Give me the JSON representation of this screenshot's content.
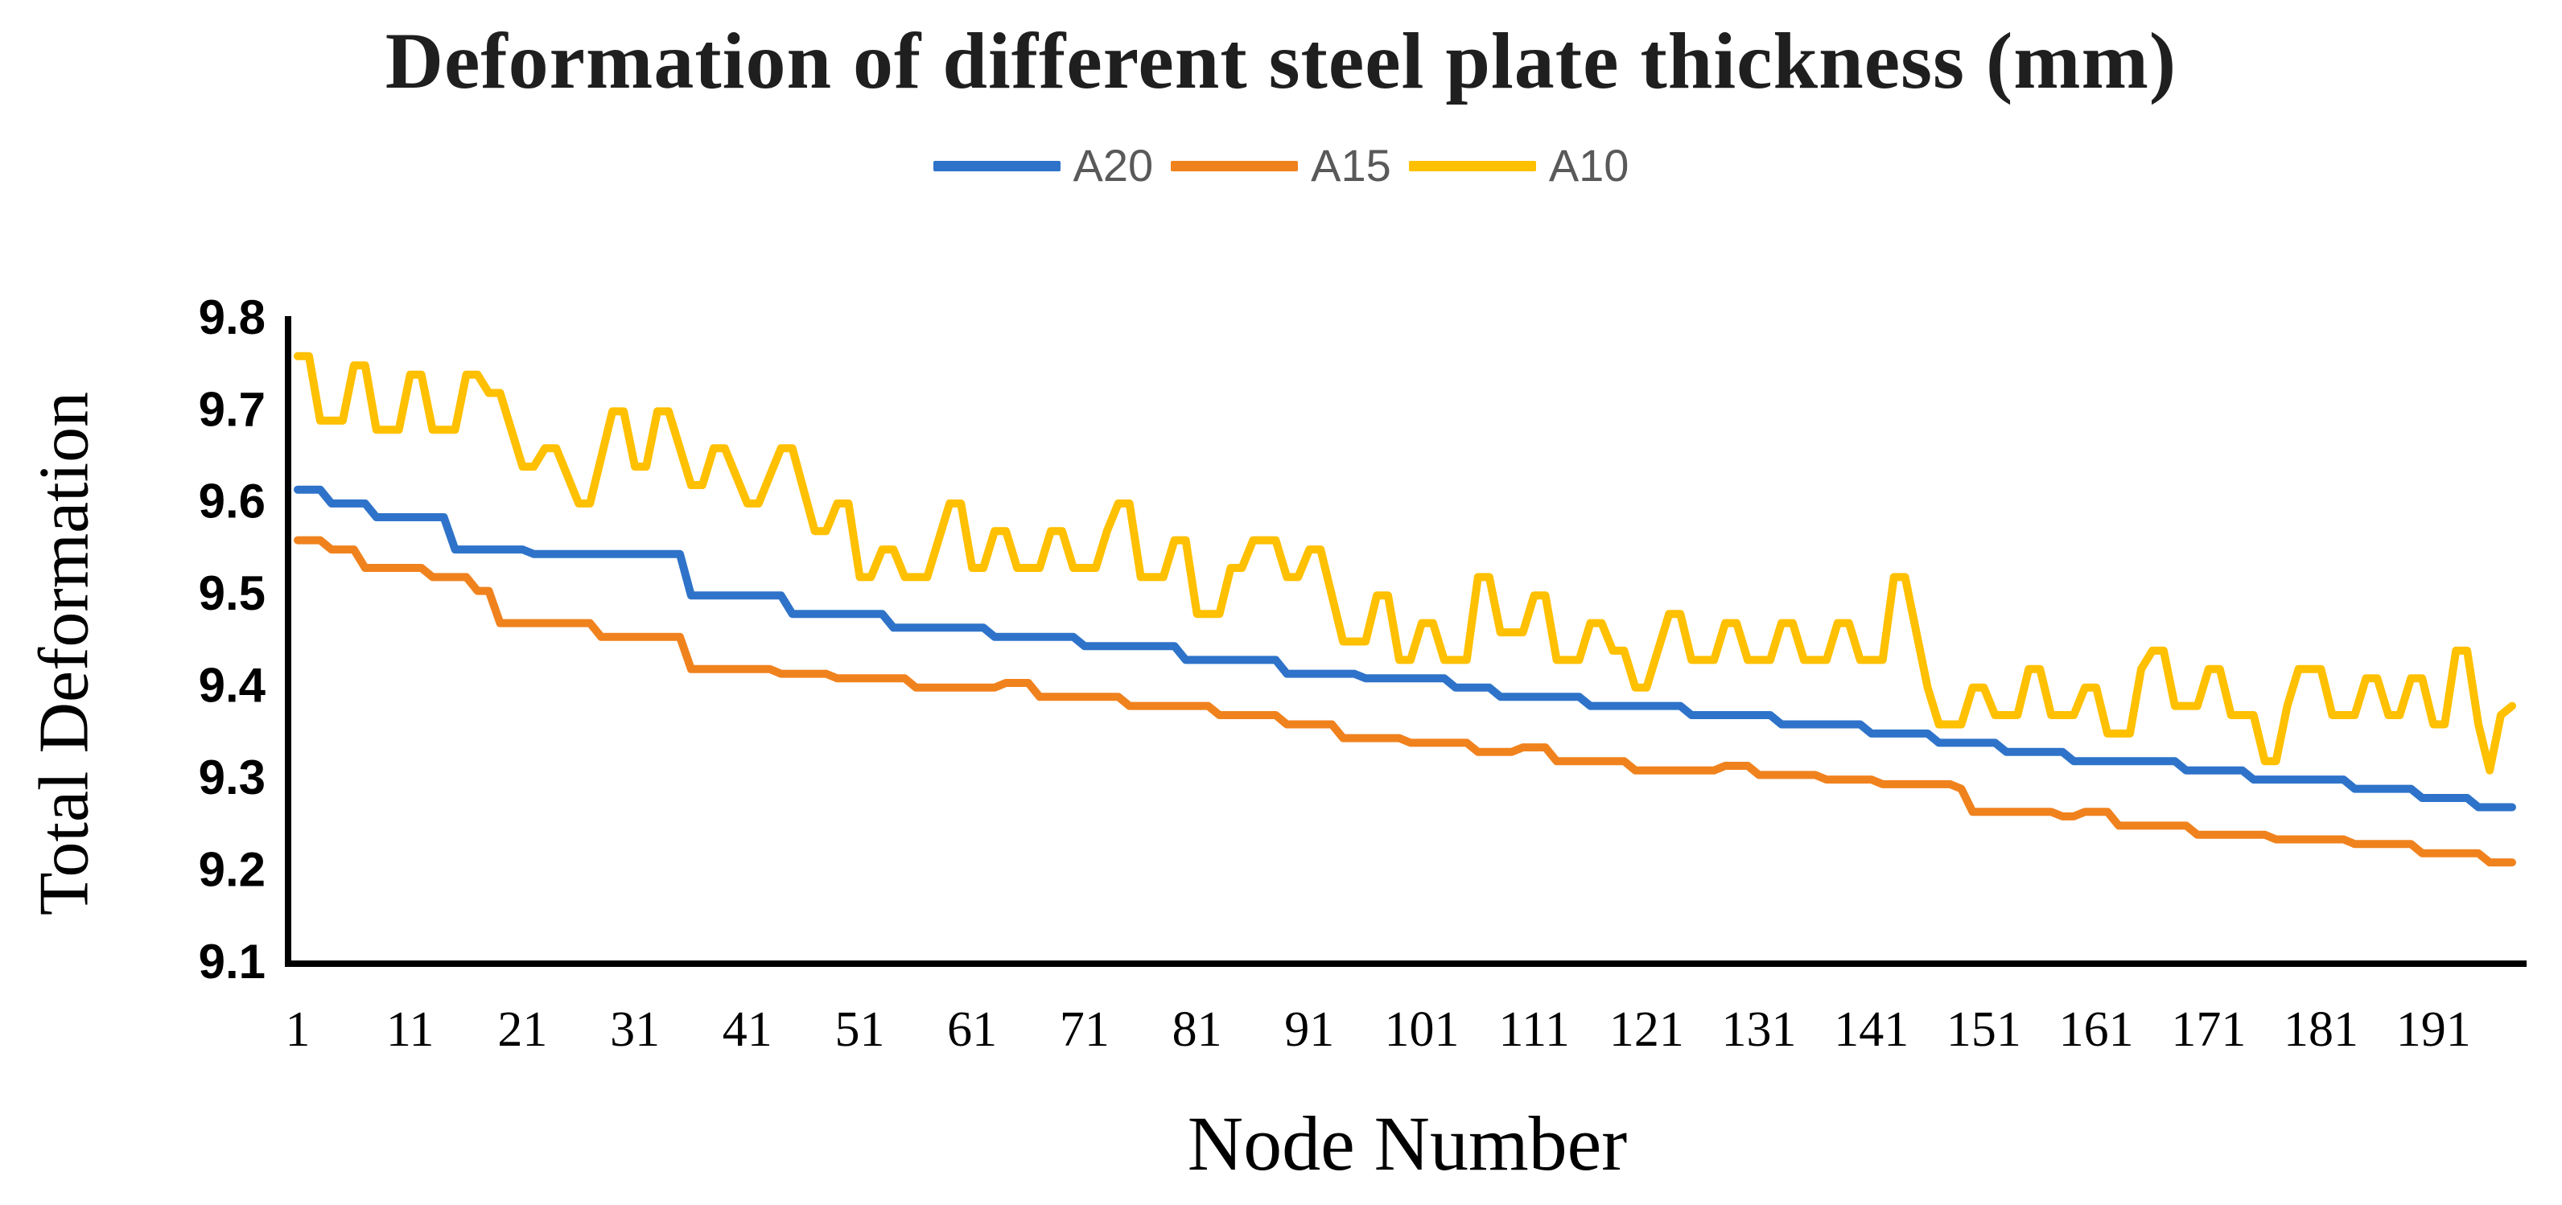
{
  "chart_data": {
    "type": "line",
    "title": "Deformation of different steel plate thickness (mm)",
    "xlabel": "Node Number",
    "ylabel": "Total Deformation",
    "xlim": [
      1,
      198
    ],
    "ylim": [
      9.1,
      9.8
    ],
    "grid": false,
    "legend_position": "top",
    "axis_color": "#000000",
    "yticks": [
      "9.8",
      "9.7",
      "9.6",
      "9.5",
      "9.4",
      "9.3",
      "9.2",
      "9.1"
    ],
    "ytick_values": [
      9.8,
      9.7,
      9.6,
      9.5,
      9.4,
      9.3,
      9.2,
      9.1
    ],
    "xticks": [
      1,
      11,
      21,
      31,
      41,
      51,
      61,
      71,
      81,
      91,
      101,
      111,
      121,
      131,
      141,
      151,
      161,
      171,
      181,
      191
    ],
    "series": [
      {
        "name": "A20",
        "color": "#2E73C9",
        "points": [
          [
            1,
            9.615
          ],
          [
            3,
            9.615
          ],
          [
            4,
            9.6
          ],
          [
            7,
            9.6
          ],
          [
            8,
            9.585
          ],
          [
            14,
            9.585
          ],
          [
            15,
            9.55
          ],
          [
            21,
            9.55
          ],
          [
            22,
            9.545
          ],
          [
            35,
            9.545
          ],
          [
            36,
            9.5
          ],
          [
            44,
            9.5
          ],
          [
            45,
            9.48
          ],
          [
            53,
            9.48
          ],
          [
            54,
            9.465
          ],
          [
            62,
            9.465
          ],
          [
            63,
            9.455
          ],
          [
            70,
            9.455
          ],
          [
            71,
            9.445
          ],
          [
            79,
            9.445
          ],
          [
            80,
            9.43
          ],
          [
            88,
            9.43
          ],
          [
            89,
            9.415
          ],
          [
            95,
            9.415
          ],
          [
            96,
            9.41
          ],
          [
            103,
            9.41
          ],
          [
            104,
            9.4
          ],
          [
            107,
            9.4
          ],
          [
            108,
            9.39
          ],
          [
            115,
            9.39
          ],
          [
            116,
            9.38
          ],
          [
            124,
            9.38
          ],
          [
            125,
            9.37
          ],
          [
            132,
            9.37
          ],
          [
            133,
            9.36
          ],
          [
            140,
            9.36
          ],
          [
            141,
            9.35
          ],
          [
            146,
            9.35
          ],
          [
            147,
            9.34
          ],
          [
            152,
            9.34
          ],
          [
            153,
            9.33
          ],
          [
            158,
            9.33
          ],
          [
            159,
            9.32
          ],
          [
            168,
            9.32
          ],
          [
            169,
            9.31
          ],
          [
            174,
            9.31
          ],
          [
            175,
            9.3
          ],
          [
            183,
            9.3
          ],
          [
            184,
            9.29
          ],
          [
            189,
            9.29
          ],
          [
            190,
            9.28
          ],
          [
            194,
            9.28
          ],
          [
            195,
            9.27
          ],
          [
            198,
            9.27
          ]
        ]
      },
      {
        "name": "A15",
        "color": "#F0821E",
        "points": [
          [
            1,
            9.56
          ],
          [
            3,
            9.56
          ],
          [
            4,
            9.55
          ],
          [
            6,
            9.55
          ],
          [
            7,
            9.53
          ],
          [
            12,
            9.53
          ],
          [
            13,
            9.52
          ],
          [
            16,
            9.52
          ],
          [
            17,
            9.505
          ],
          [
            18,
            9.505
          ],
          [
            19,
            9.47
          ],
          [
            27,
            9.47
          ],
          [
            28,
            9.455
          ],
          [
            35,
            9.455
          ],
          [
            36,
            9.42
          ],
          [
            43,
            9.42
          ],
          [
            44,
            9.415
          ],
          [
            48,
            9.415
          ],
          [
            49,
            9.41
          ],
          [
            55,
            9.41
          ],
          [
            56,
            9.4
          ],
          [
            63,
            9.4
          ],
          [
            64,
            9.405
          ],
          [
            66,
            9.405
          ],
          [
            67,
            9.39
          ],
          [
            74,
            9.39
          ],
          [
            75,
            9.38
          ],
          [
            82,
            9.38
          ],
          [
            83,
            9.37
          ],
          [
            88,
            9.37
          ],
          [
            89,
            9.36
          ],
          [
            93,
            9.36
          ],
          [
            94,
            9.345
          ],
          [
            99,
            9.345
          ],
          [
            100,
            9.34
          ],
          [
            105,
            9.34
          ],
          [
            106,
            9.33
          ],
          [
            109,
            9.33
          ],
          [
            110,
            9.335
          ],
          [
            112,
            9.335
          ],
          [
            113,
            9.32
          ],
          [
            119,
            9.32
          ],
          [
            120,
            9.31
          ],
          [
            127,
            9.31
          ],
          [
            128,
            9.315
          ],
          [
            130,
            9.315
          ],
          [
            131,
            9.305
          ],
          [
            136,
            9.305
          ],
          [
            137,
            9.3
          ],
          [
            141,
            9.3
          ],
          [
            142,
            9.295
          ],
          [
            148,
            9.295
          ],
          [
            149,
            9.29
          ],
          [
            150,
            9.265
          ],
          [
            157,
            9.265
          ],
          [
            158,
            9.26
          ],
          [
            159,
            9.26
          ],
          [
            160,
            9.265
          ],
          [
            162,
            9.265
          ],
          [
            163,
            9.25
          ],
          [
            169,
            9.25
          ],
          [
            170,
            9.24
          ],
          [
            176,
            9.24
          ],
          [
            177,
            9.235
          ],
          [
            183,
            9.235
          ],
          [
            184,
            9.23
          ],
          [
            189,
            9.23
          ],
          [
            190,
            9.22
          ],
          [
            195,
            9.22
          ],
          [
            196,
            9.21
          ],
          [
            198,
            9.21
          ]
        ]
      },
      {
        "name": "A10",
        "color": "#FFC000",
        "points": [
          [
            1,
            9.76
          ],
          [
            2,
            9.76
          ],
          [
            3,
            9.69
          ],
          [
            5,
            9.69
          ],
          [
            6,
            9.75
          ],
          [
            7,
            9.75
          ],
          [
            8,
            9.68
          ],
          [
            10,
            9.68
          ],
          [
            11,
            9.74
          ],
          [
            12,
            9.74
          ],
          [
            13,
            9.68
          ],
          [
            15,
            9.68
          ],
          [
            16,
            9.74
          ],
          [
            17,
            9.74
          ],
          [
            18,
            9.72
          ],
          [
            19,
            9.72
          ],
          [
            21,
            9.64
          ],
          [
            22,
            9.64
          ],
          [
            23,
            9.66
          ],
          [
            24,
            9.66
          ],
          [
            26,
            9.6
          ],
          [
            27,
            9.6
          ],
          [
            28,
            9.65
          ],
          [
            29,
            9.7
          ],
          [
            30,
            9.7
          ],
          [
            31,
            9.64
          ],
          [
            32,
            9.64
          ],
          [
            33,
            9.7
          ],
          [
            34,
            9.7
          ],
          [
            36,
            9.62
          ],
          [
            37,
            9.62
          ],
          [
            38,
            9.66
          ],
          [
            39,
            9.66
          ],
          [
            41,
            9.6
          ],
          [
            42,
            9.6
          ],
          [
            43,
            9.63
          ],
          [
            44,
            9.66
          ],
          [
            45,
            9.66
          ],
          [
            47,
            9.57
          ],
          [
            48,
            9.57
          ],
          [
            49,
            9.6
          ],
          [
            50,
            9.6
          ],
          [
            51,
            9.52
          ],
          [
            52,
            9.52
          ],
          [
            53,
            9.55
          ],
          [
            54,
            9.55
          ],
          [
            55,
            9.52
          ],
          [
            57,
            9.52
          ],
          [
            58,
            9.56
          ],
          [
            59,
            9.6
          ],
          [
            60,
            9.6
          ],
          [
            61,
            9.53
          ],
          [
            62,
            9.53
          ],
          [
            63,
            9.57
          ],
          [
            64,
            9.57
          ],
          [
            65,
            9.53
          ],
          [
            67,
            9.53
          ],
          [
            68,
            9.57
          ],
          [
            69,
            9.57
          ],
          [
            70,
            9.53
          ],
          [
            72,
            9.53
          ],
          [
            73,
            9.57
          ],
          [
            74,
            9.6
          ],
          [
            75,
            9.6
          ],
          [
            76,
            9.52
          ],
          [
            78,
            9.52
          ],
          [
            79,
            9.56
          ],
          [
            80,
            9.56
          ],
          [
            81,
            9.48
          ],
          [
            83,
            9.48
          ],
          [
            84,
            9.53
          ],
          [
            85,
            9.53
          ],
          [
            86,
            9.56
          ],
          [
            88,
            9.56
          ],
          [
            89,
            9.52
          ],
          [
            90,
            9.52
          ],
          [
            91,
            9.55
          ],
          [
            92,
            9.55
          ],
          [
            93,
            9.5
          ],
          [
            94,
            9.45
          ],
          [
            96,
            9.45
          ],
          [
            97,
            9.5
          ],
          [
            98,
            9.5
          ],
          [
            99,
            9.43
          ],
          [
            100,
            9.43
          ],
          [
            101,
            9.47
          ],
          [
            102,
            9.47
          ],
          [
            103,
            9.43
          ],
          [
            105,
            9.43
          ],
          [
            106,
            9.52
          ],
          [
            107,
            9.52
          ],
          [
            108,
            9.46
          ],
          [
            110,
            9.46
          ],
          [
            111,
            9.5
          ],
          [
            112,
            9.5
          ],
          [
            113,
            9.43
          ],
          [
            115,
            9.43
          ],
          [
            116,
            9.47
          ],
          [
            117,
            9.47
          ],
          [
            118,
            9.44
          ],
          [
            119,
            9.44
          ],
          [
            120,
            9.4
          ],
          [
            121,
            9.4
          ],
          [
            122,
            9.44
          ],
          [
            123,
            9.48
          ],
          [
            124,
            9.48
          ],
          [
            125,
            9.43
          ],
          [
            127,
            9.43
          ],
          [
            128,
            9.47
          ],
          [
            129,
            9.47
          ],
          [
            130,
            9.43
          ],
          [
            132,
            9.43
          ],
          [
            133,
            9.47
          ],
          [
            134,
            9.47
          ],
          [
            135,
            9.43
          ],
          [
            137,
            9.43
          ],
          [
            138,
            9.47
          ],
          [
            139,
            9.47
          ],
          [
            140,
            9.43
          ],
          [
            142,
            9.43
          ],
          [
            143,
            9.52
          ],
          [
            144,
            9.52
          ],
          [
            145,
            9.46
          ],
          [
            146,
            9.4
          ],
          [
            147,
            9.36
          ],
          [
            149,
            9.36
          ],
          [
            150,
            9.4
          ],
          [
            151,
            9.4
          ],
          [
            152,
            9.37
          ],
          [
            154,
            9.37
          ],
          [
            155,
            9.42
          ],
          [
            156,
            9.42
          ],
          [
            157,
            9.37
          ],
          [
            159,
            9.37
          ],
          [
            160,
            9.4
          ],
          [
            161,
            9.4
          ],
          [
            162,
            9.35
          ],
          [
            164,
            9.35
          ],
          [
            165,
            9.42
          ],
          [
            166,
            9.44
          ],
          [
            167,
            9.44
          ],
          [
            168,
            9.38
          ],
          [
            170,
            9.38
          ],
          [
            171,
            9.42
          ],
          [
            172,
            9.42
          ],
          [
            173,
            9.37
          ],
          [
            175,
            9.37
          ],
          [
            176,
            9.32
          ],
          [
            177,
            9.32
          ],
          [
            178,
            9.38
          ],
          [
            179,
            9.42
          ],
          [
            181,
            9.42
          ],
          [
            182,
            9.37
          ],
          [
            184,
            9.37
          ],
          [
            185,
            9.41
          ],
          [
            186,
            9.41
          ],
          [
            187,
            9.37
          ],
          [
            188,
            9.37
          ],
          [
            189,
            9.41
          ],
          [
            190,
            9.41
          ],
          [
            191,
            9.36
          ],
          [
            192,
            9.36
          ],
          [
            193,
            9.44
          ],
          [
            194,
            9.44
          ],
          [
            195,
            9.36
          ],
          [
            196,
            9.31
          ],
          [
            197,
            9.37
          ],
          [
            198,
            9.38
          ]
        ]
      }
    ]
  }
}
